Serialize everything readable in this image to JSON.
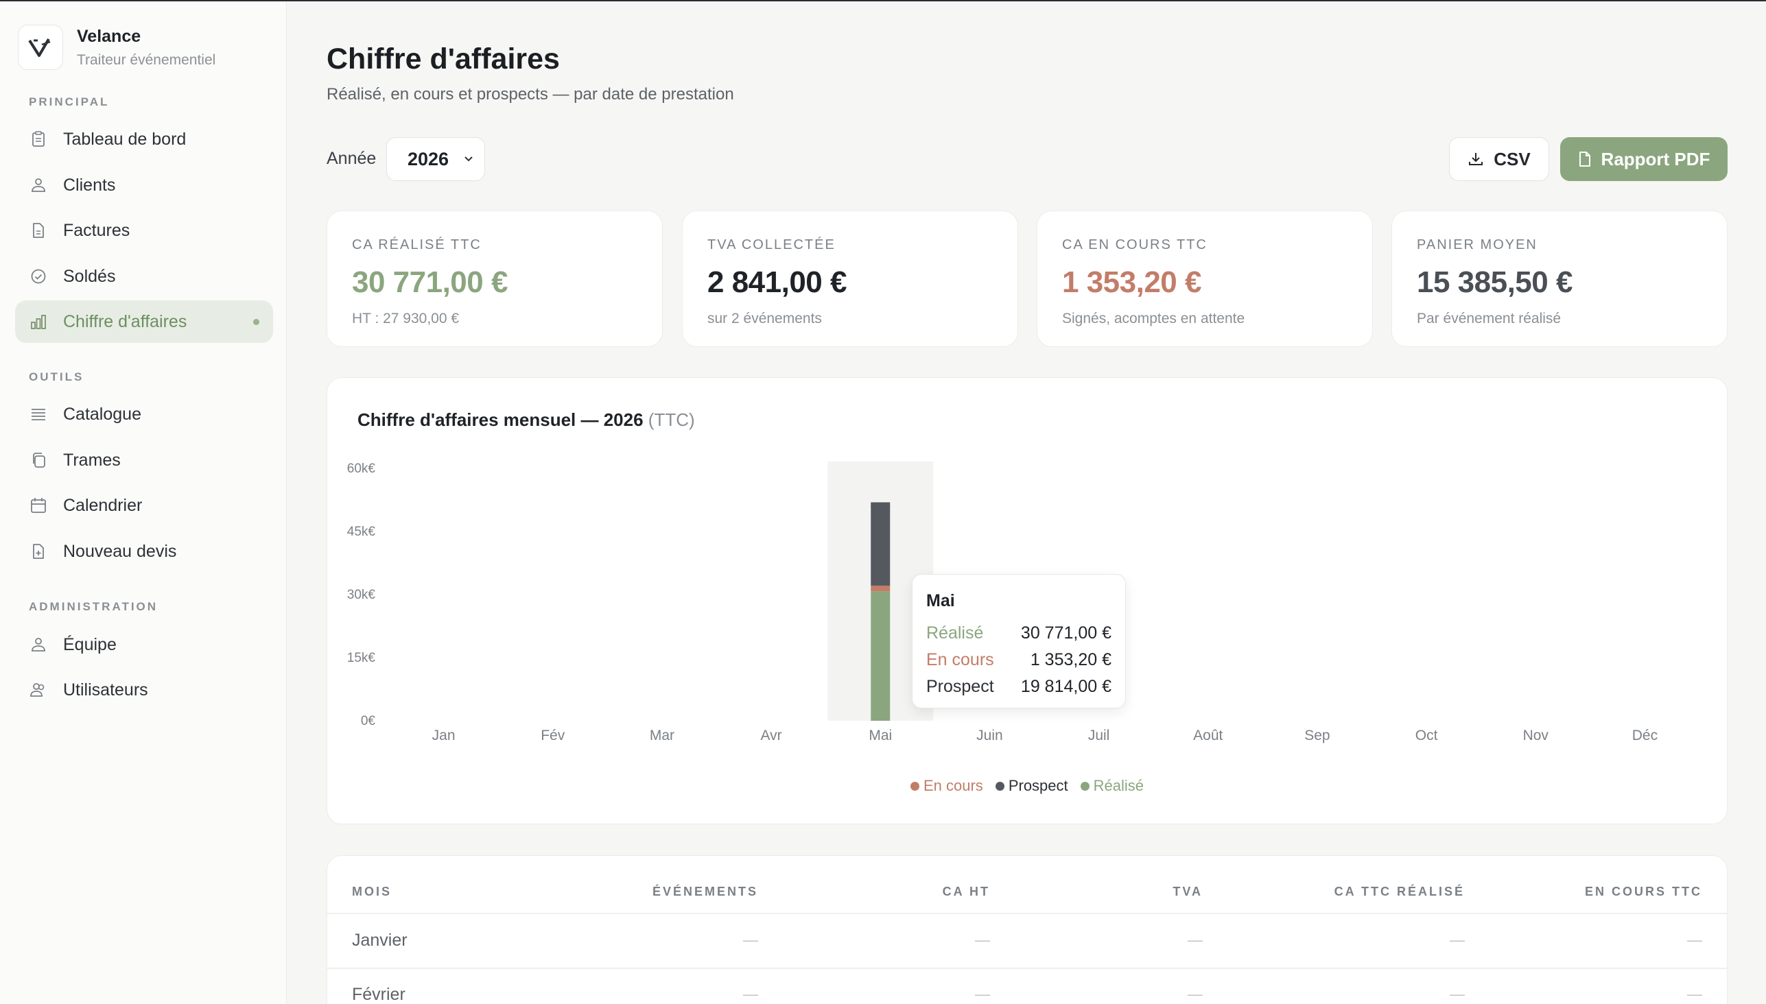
{
  "brand": {
    "name": "Velance",
    "subtitle": "Traiteur événementiel"
  },
  "sidebar": {
    "sections": [
      {
        "label": "PRINCIPAL"
      },
      {
        "label": "OUTILS"
      },
      {
        "label": "ADMINISTRATION"
      }
    ],
    "items": [
      {
        "label": "Tableau de bord",
        "icon": "clipboard-icon"
      },
      {
        "label": "Clients",
        "icon": "users-icon"
      },
      {
        "label": "Factures",
        "icon": "document-icon"
      },
      {
        "label": "Soldés",
        "icon": "check-circle-icon"
      },
      {
        "label": "Chiffre d'affaires",
        "icon": "bar-chart-icon",
        "active": true
      },
      {
        "label": "Catalogue",
        "icon": "list-icon"
      },
      {
        "label": "Trames",
        "icon": "copy-icon"
      },
      {
        "label": "Calendrier",
        "icon": "calendar-icon"
      },
      {
        "label": "Nouveau devis",
        "icon": "file-plus-icon"
      },
      {
        "label": "Équipe",
        "icon": "team-icon"
      },
      {
        "label": "Utilisateurs",
        "icon": "user-group-icon"
      }
    ]
  },
  "header": {
    "title": "Chiffre d'affaires",
    "subtitle": "Réalisé, en cours et prospects — par date de prestation"
  },
  "toolbar": {
    "year_label": "Année",
    "year_value": "2026",
    "csv_label": "CSV",
    "pdf_label": "Rapport PDF"
  },
  "kpis": [
    {
      "label": "CA RÉALISÉ TTC",
      "value": "30 771,00 €",
      "note": "HT : 27 930,00 €",
      "color": "#8ba67f"
    },
    {
      "label": "TVA COLLECTÉE",
      "value": "2 841,00 €",
      "note": "sur 2 événements",
      "color": "#1f2328"
    },
    {
      "label": "CA EN COURS TTC",
      "value": "1 353,20 €",
      "note": "Signés, acomptes en attente",
      "color": "#c27d68"
    },
    {
      "label": "PANIER MOYEN",
      "value": "15 385,50 €",
      "note": "Par événement réalisé",
      "color": "#4a4f55"
    }
  ],
  "chart": {
    "title": "Chiffre d'affaires mensuel — 2026",
    "title_suffix": "(TTC)"
  },
  "chart_data": {
    "type": "bar",
    "stacked": true,
    "categories": [
      "Jan",
      "Fév",
      "Mar",
      "Avr",
      "Mai",
      "Juin",
      "Juil",
      "Août",
      "Sep",
      "Oct",
      "Nov",
      "Déc"
    ],
    "series": [
      {
        "name": "Réalisé",
        "color": "#8ba67f",
        "values": [
          0,
          0,
          0,
          0,
          30771,
          0,
          0,
          0,
          0,
          0,
          0,
          0
        ]
      },
      {
        "name": "En cours",
        "color": "#c27d68",
        "values": [
          0,
          0,
          0,
          0,
          1353.2,
          0,
          0,
          0,
          0,
          0,
          0,
          0
        ]
      },
      {
        "name": "Prospect",
        "color": "#55595f",
        "values": [
          0,
          0,
          0,
          0,
          19814,
          0,
          0,
          0,
          0,
          0,
          0,
          0
        ]
      }
    ],
    "yticks": [
      "0€",
      "15k€",
      "30k€",
      "45k€",
      "60k€"
    ],
    "ylim": [
      0,
      60000
    ],
    "legend": {
      "position": "bottom",
      "entries": [
        "En cours",
        "Prospect",
        "Réalisé"
      ]
    },
    "highlighted": "Mai"
  },
  "tooltip": {
    "title": "Mai",
    "rows": [
      {
        "label": "Réalisé",
        "value": "30 771,00 €",
        "color": "#8ba67f"
      },
      {
        "label": "En cours",
        "value": "1 353,20 €",
        "color": "#c27d68"
      },
      {
        "label": "Prospect",
        "value": "19 814,00 €",
        "color": "#2d3136"
      }
    ]
  },
  "table": {
    "headers": [
      "MOIS",
      "ÉVÉNEMENTS",
      "CA HT",
      "TVA",
      "CA TTC RÉALISÉ",
      "EN COURS TTC"
    ],
    "rows": [
      {
        "month": "Janvier",
        "cells": [
          "—",
          "—",
          "—",
          "—",
          "—"
        ]
      },
      {
        "month": "Février",
        "cells": [
          "—",
          "—",
          "—",
          "—",
          "—"
        ]
      }
    ]
  }
}
